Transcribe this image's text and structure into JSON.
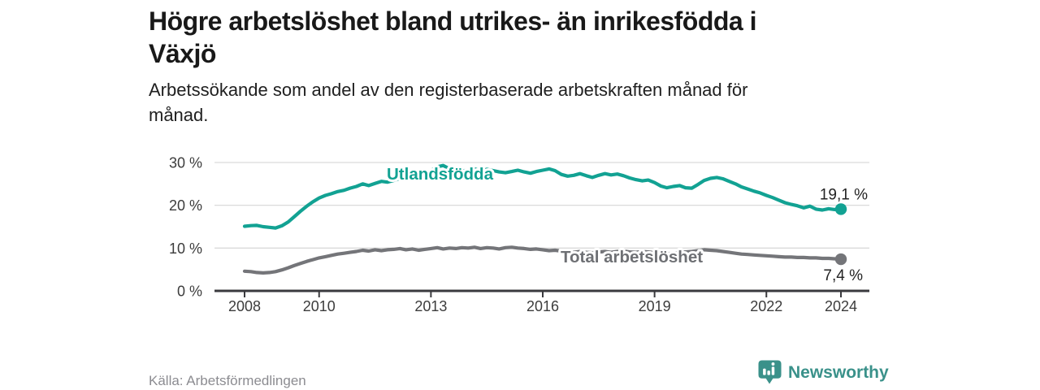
{
  "header": {
    "title": "Högre arbetslöshet bland utrikes- än inrikesfödda i\nVäxjö",
    "subtitle": "Arbetssökande som andel av den registerbaserade arbetskraften månad för\nmånad."
  },
  "footer": {
    "source": "Källa: Arbetsförmedlingen",
    "brand": "Newsworthy"
  },
  "colors": {
    "accent_teal": "#12A293",
    "line_gray": "#747579",
    "axis": "#3A3A3E",
    "grid": "#DADADA",
    "tick_text": "#3C3C3C",
    "value_text": "#232323",
    "source_text": "#8C8C91",
    "brand_teal": "#3A918A"
  },
  "chart_data": {
    "type": "line",
    "title": "Högre arbetslöshet bland utrikes- än inrikesfödda i Växjö",
    "subtitle": "Arbetssökande som andel av den registerbaserade arbetskraften månad för månad.",
    "xlabel": "",
    "ylabel": "",
    "legend": "inline-labels",
    "grid": "horizontal",
    "x_axis": {
      "range": [
        2007.75,
        2024.75
      ],
      "ticks": [
        2008,
        2010,
        2013,
        2016,
        2019,
        2022,
        2024
      ],
      "labels": [
        "2008",
        "2010",
        "2013",
        "2016",
        "2019",
        "2022",
        "2024"
      ]
    },
    "y_axis": {
      "range": [
        0,
        32
      ],
      "ticks": [
        30,
        20,
        10,
        0
      ],
      "labels": [
        "30 %",
        "20 %",
        "10 %",
        "0 %"
      ]
    },
    "style": {
      "grid_color": "#DADADA",
      "axis_color": "#3A3A3E"
    },
    "series": [
      {
        "name": "Utlandsfödda",
        "color": "#12A293",
        "label_color": "#12A293",
        "end_label": "19,1 %",
        "end_value": 19.1,
        "points": [
          [
            2008.0,
            15.1
          ],
          [
            2008.17,
            15.25
          ],
          [
            2008.33,
            15.3
          ],
          [
            2008.5,
            15.0
          ],
          [
            2008.67,
            14.85
          ],
          [
            2008.83,
            14.7
          ],
          [
            2009.0,
            15.2
          ],
          [
            2009.17,
            16.1
          ],
          [
            2009.33,
            17.3
          ],
          [
            2009.5,
            18.6
          ],
          [
            2009.67,
            19.8
          ],
          [
            2009.83,
            20.8
          ],
          [
            2010.0,
            21.7
          ],
          [
            2010.17,
            22.3
          ],
          [
            2010.33,
            22.7
          ],
          [
            2010.5,
            23.2
          ],
          [
            2010.67,
            23.5
          ],
          [
            2010.83,
            24.0
          ],
          [
            2011.0,
            24.4
          ],
          [
            2011.17,
            25.0
          ],
          [
            2011.33,
            24.6
          ],
          [
            2011.5,
            25.1
          ],
          [
            2011.67,
            25.6
          ],
          [
            2011.83,
            25.4
          ],
          [
            2012.0,
            25.8
          ],
          [
            2012.17,
            26.3
          ],
          [
            2012.33,
            26.0
          ],
          [
            2012.5,
            26.5
          ],
          [
            2012.67,
            26.9
          ],
          [
            2012.83,
            27.3
          ],
          [
            2013.0,
            28.1
          ],
          [
            2013.17,
            29.0
          ],
          [
            2013.33,
            29.3
          ],
          [
            2013.5,
            28.5
          ],
          [
            2013.67,
            28.1
          ],
          [
            2013.83,
            28.0
          ],
          [
            2014.0,
            28.2
          ],
          [
            2014.17,
            28.5
          ],
          [
            2014.33,
            28.0
          ],
          [
            2014.5,
            28.4
          ],
          [
            2014.67,
            28.1
          ],
          [
            2014.83,
            27.8
          ],
          [
            2015.0,
            27.6
          ],
          [
            2015.17,
            27.9
          ],
          [
            2015.33,
            28.2
          ],
          [
            2015.5,
            27.8
          ],
          [
            2015.67,
            27.5
          ],
          [
            2015.83,
            27.9
          ],
          [
            2016.0,
            28.2
          ],
          [
            2016.17,
            28.5
          ],
          [
            2016.33,
            28.1
          ],
          [
            2016.5,
            27.2
          ],
          [
            2016.67,
            26.8
          ],
          [
            2016.83,
            27.0
          ],
          [
            2017.0,
            27.4
          ],
          [
            2017.17,
            26.9
          ],
          [
            2017.33,
            26.5
          ],
          [
            2017.5,
            27.0
          ],
          [
            2017.67,
            27.4
          ],
          [
            2017.83,
            27.1
          ],
          [
            2018.0,
            27.3
          ],
          [
            2018.17,
            26.9
          ],
          [
            2018.33,
            26.4
          ],
          [
            2018.5,
            26.0
          ],
          [
            2018.67,
            25.7
          ],
          [
            2018.83,
            25.9
          ],
          [
            2019.0,
            25.3
          ],
          [
            2019.17,
            24.5
          ],
          [
            2019.33,
            24.1
          ],
          [
            2019.5,
            24.4
          ],
          [
            2019.67,
            24.6
          ],
          [
            2019.83,
            24.1
          ],
          [
            2020.0,
            24.0
          ],
          [
            2020.17,
            24.9
          ],
          [
            2020.33,
            25.8
          ],
          [
            2020.5,
            26.3
          ],
          [
            2020.67,
            26.5
          ],
          [
            2020.83,
            26.2
          ],
          [
            2021.0,
            25.6
          ],
          [
            2021.17,
            25.0
          ],
          [
            2021.33,
            24.3
          ],
          [
            2021.5,
            23.8
          ],
          [
            2021.67,
            23.3
          ],
          [
            2021.83,
            22.9
          ],
          [
            2022.0,
            22.3
          ],
          [
            2022.17,
            21.8
          ],
          [
            2022.33,
            21.2
          ],
          [
            2022.5,
            20.6
          ],
          [
            2022.67,
            20.2
          ],
          [
            2022.83,
            19.9
          ],
          [
            2023.0,
            19.4
          ],
          [
            2023.17,
            19.8
          ],
          [
            2023.33,
            19.1
          ],
          [
            2023.5,
            18.9
          ],
          [
            2023.67,
            19.2
          ],
          [
            2023.83,
            19.0
          ],
          [
            2024.0,
            19.1
          ]
        ]
      },
      {
        "name": "Total arbetslöshet",
        "color": "#747579",
        "label_color": "#6E7074",
        "end_label": "7,4 %",
        "end_value": 7.4,
        "points": [
          [
            2008.0,
            4.6
          ],
          [
            2008.17,
            4.5
          ],
          [
            2008.33,
            4.3
          ],
          [
            2008.5,
            4.2
          ],
          [
            2008.67,
            4.3
          ],
          [
            2008.83,
            4.5
          ],
          [
            2009.0,
            4.9
          ],
          [
            2009.17,
            5.4
          ],
          [
            2009.33,
            5.9
          ],
          [
            2009.5,
            6.4
          ],
          [
            2009.67,
            6.9
          ],
          [
            2009.83,
            7.3
          ],
          [
            2010.0,
            7.7
          ],
          [
            2010.17,
            8.0
          ],
          [
            2010.33,
            8.3
          ],
          [
            2010.5,
            8.6
          ],
          [
            2010.67,
            8.8
          ],
          [
            2010.83,
            9.0
          ],
          [
            2011.0,
            9.2
          ],
          [
            2011.17,
            9.5
          ],
          [
            2011.33,
            9.3
          ],
          [
            2011.5,
            9.6
          ],
          [
            2011.67,
            9.4
          ],
          [
            2011.83,
            9.6
          ],
          [
            2012.0,
            9.7
          ],
          [
            2012.17,
            9.9
          ],
          [
            2012.33,
            9.6
          ],
          [
            2012.5,
            9.8
          ],
          [
            2012.67,
            9.5
          ],
          [
            2012.83,
            9.7
          ],
          [
            2013.0,
            9.9
          ],
          [
            2013.17,
            10.1
          ],
          [
            2013.33,
            9.8
          ],
          [
            2013.5,
            10.0
          ],
          [
            2013.67,
            9.9
          ],
          [
            2013.83,
            10.1
          ],
          [
            2014.0,
            10.0
          ],
          [
            2014.17,
            10.2
          ],
          [
            2014.33,
            9.9
          ],
          [
            2014.5,
            10.1
          ],
          [
            2014.67,
            10.0
          ],
          [
            2014.83,
            9.8
          ],
          [
            2015.0,
            10.1
          ],
          [
            2015.17,
            10.2
          ],
          [
            2015.33,
            10.0
          ],
          [
            2015.5,
            9.9
          ],
          [
            2015.67,
            9.7
          ],
          [
            2015.83,
            9.8
          ],
          [
            2016.0,
            9.6
          ],
          [
            2016.17,
            9.4
          ],
          [
            2016.33,
            9.5
          ],
          [
            2016.5,
            9.3
          ],
          [
            2016.67,
            9.1
          ],
          [
            2016.83,
            9.0
          ],
          [
            2017.0,
            9.2
          ],
          [
            2017.17,
            9.0
          ],
          [
            2017.33,
            8.9
          ],
          [
            2017.5,
            9.1
          ],
          [
            2017.67,
            9.2
          ],
          [
            2017.83,
            9.0
          ],
          [
            2018.0,
            9.2
          ],
          [
            2018.17,
            9.3
          ],
          [
            2018.33,
            9.1
          ],
          [
            2018.5,
            9.0
          ],
          [
            2018.67,
            9.2
          ],
          [
            2018.83,
            9.1
          ],
          [
            2019.0,
            8.9
          ],
          [
            2019.17,
            8.8
          ],
          [
            2019.33,
            8.7
          ],
          [
            2019.5,
            8.8
          ],
          [
            2019.67,
            8.9
          ],
          [
            2019.83,
            9.1
          ],
          [
            2020.0,
            9.2
          ],
          [
            2020.17,
            9.4
          ],
          [
            2020.33,
            9.6
          ],
          [
            2020.5,
            9.5
          ],
          [
            2020.67,
            9.4
          ],
          [
            2020.83,
            9.2
          ],
          [
            2021.0,
            9.0
          ],
          [
            2021.17,
            8.8
          ],
          [
            2021.33,
            8.6
          ],
          [
            2021.5,
            8.5
          ],
          [
            2021.67,
            8.4
          ],
          [
            2021.83,
            8.3
          ],
          [
            2022.0,
            8.2
          ],
          [
            2022.17,
            8.1
          ],
          [
            2022.33,
            8.0
          ],
          [
            2022.5,
            7.9
          ],
          [
            2022.67,
            7.9
          ],
          [
            2022.83,
            7.8
          ],
          [
            2023.0,
            7.8
          ],
          [
            2023.17,
            7.7
          ],
          [
            2023.33,
            7.7
          ],
          [
            2023.5,
            7.6
          ],
          [
            2023.67,
            7.6
          ],
          [
            2023.83,
            7.5
          ],
          [
            2024.0,
            7.4
          ]
        ]
      }
    ]
  }
}
